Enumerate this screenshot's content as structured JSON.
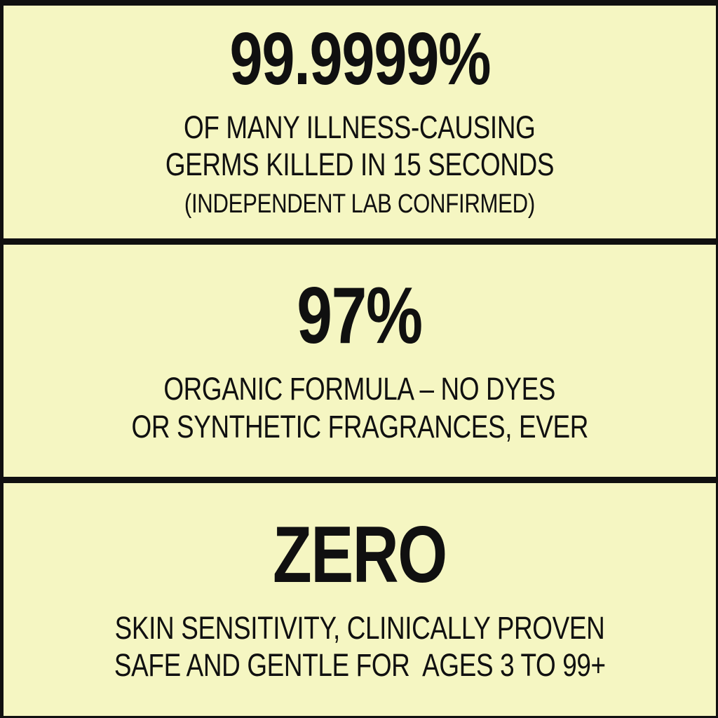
{
  "theme": {
    "background_color": "#f5f6c2",
    "text_color": "#101010",
    "divider_color": "#101010"
  },
  "panels": [
    {
      "id": "germ-kill-claim",
      "stat": "99.9999%",
      "description_line1": "OF MANY ILLNESS-CAUSING",
      "description_line2": "GERMS KILLED IN 15 SECONDS",
      "footnote": "(INDEPENDENT LAB CONFIRMED)"
    },
    {
      "id": "organic-formula-claim",
      "stat": "97%",
      "description_line1": "ORGANIC FORMULA – NO DYES",
      "description_line2": "OR SYNTHETIC FRAGRANCES, EVER"
    },
    {
      "id": "zero-sensitivity-claim",
      "stat": "ZERO",
      "description_line1": "SKIN SENSITIVITY, CLINICALLY PROVEN",
      "description_line2": "SAFE AND GENTLE FOR  AGES 3 TO 99+"
    }
  ]
}
